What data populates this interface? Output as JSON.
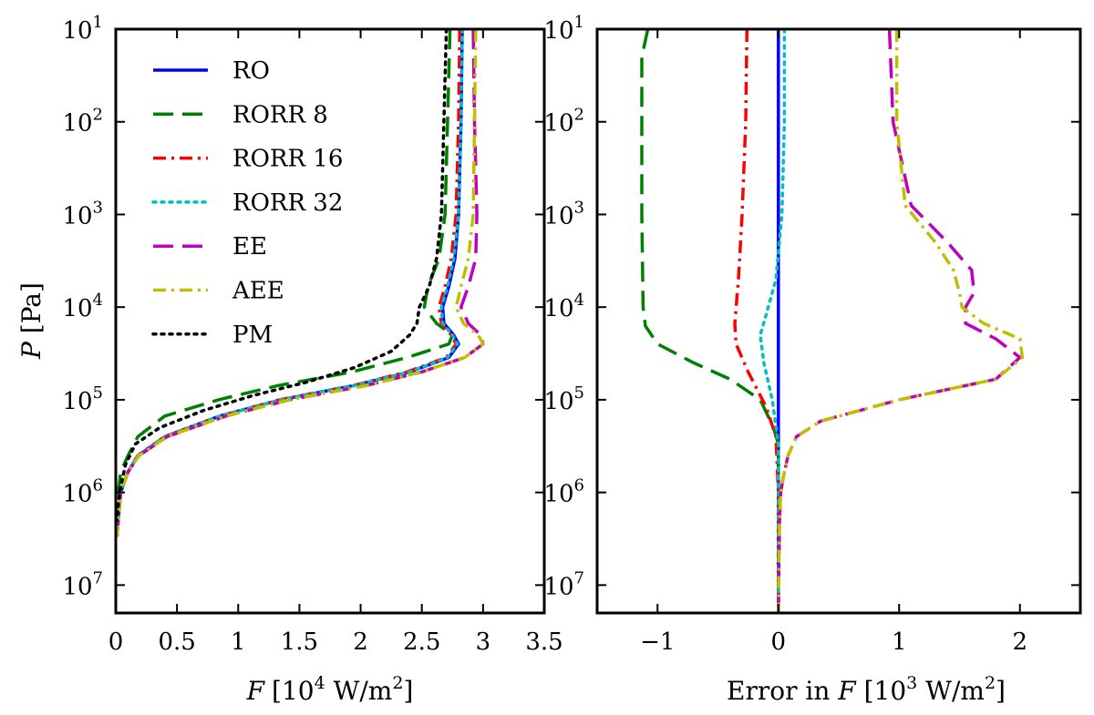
{
  "chart_data": [
    {
      "type": "line",
      "title": "",
      "xlabel_var": "F",
      "xlabel_unit": "[10",
      "xlabel_exp": "4",
      "xlabel_unit2": " W/m",
      "xlabel_unit2_exp": "2",
      "xlabel_close": "]",
      "ylabel_var": "P",
      "ylabel_unit": " [Pa]",
      "xlim": [
        0,
        3.5
      ],
      "ylim": [
        20000000,
        10
      ],
      "yscale": "log",
      "xticks": [
        0,
        0.5,
        1,
        1.5,
        2,
        2.5,
        3,
        3.5
      ],
      "xtick_labels": [
        "0",
        "0.5",
        "1",
        "1.5",
        "2",
        "2.5",
        "3",
        "3.5"
      ],
      "yticks": [
        10,
        100,
        1000,
        10000,
        100000,
        1000000,
        10000000
      ],
      "ytick_base": "10",
      "ytick_exps": [
        "1",
        "2",
        "3",
        "4",
        "5",
        "6",
        "7"
      ],
      "legend_position": "upper-left",
      "series": [
        {
          "name": "RO",
          "color": "#0000ff",
          "dash": "solid",
          "x": [
            2.83,
            2.82,
            2.8,
            2.77,
            2.72,
            2.67,
            2.68,
            2.76,
            2.8,
            2.72,
            2.4,
            1.95,
            1.35,
            0.85,
            0.4,
            0.18,
            0.1,
            0.04,
            0.02,
            0.01
          ],
          "y": [
            10,
            100,
            1000,
            3000,
            6000,
            10000,
            15000,
            20000,
            25000,
            35000,
            50000,
            70000,
            100000,
            150000,
            250000,
            400000,
            600000,
            1000000,
            2000000,
            3000000
          ]
        },
        {
          "name": "RORR 8",
          "color": "#008000",
          "dash": "longdash",
          "x": [
            2.73,
            2.71,
            2.69,
            2.64,
            2.55,
            2.52,
            2.62,
            2.75,
            2.72,
            2.38,
            1.93,
            1.33,
            0.84,
            0.4,
            0.18,
            0.1,
            0.04,
            0.02,
            0.01
          ],
          "y": [
            10,
            100,
            1000,
            3000,
            6000,
            10000,
            15000,
            20000,
            25000,
            35000,
            50000,
            70000,
            100000,
            150000,
            250000,
            400000,
            600000,
            1000000,
            2000000
          ]
        },
        {
          "name": "RORR 16",
          "color": "#ff0000",
          "dash": "dashdot",
          "x": [
            2.81,
            2.8,
            2.78,
            2.74,
            2.69,
            2.64,
            2.66,
            2.74,
            2.78,
            2.7,
            2.38,
            1.94,
            1.34,
            0.85,
            0.4,
            0.18,
            0.1,
            0.04,
            0.02,
            0.01
          ],
          "y": [
            10,
            100,
            1000,
            3000,
            6000,
            10000,
            15000,
            20000,
            25000,
            35000,
            50000,
            70000,
            100000,
            150000,
            250000,
            400000,
            600000,
            1000000,
            2000000,
            3000000
          ]
        },
        {
          "name": "RORR 32",
          "color": "#00bfbf",
          "dash": "dotted",
          "x": [
            2.83,
            2.82,
            2.8,
            2.76,
            2.71,
            2.66,
            2.67,
            2.75,
            2.79,
            2.71,
            2.4,
            1.95,
            1.35,
            0.85,
            0.4,
            0.18,
            0.1,
            0.04,
            0.02,
            0.01
          ],
          "y": [
            10,
            100,
            1000,
            3000,
            6000,
            10000,
            15000,
            20000,
            25000,
            35000,
            50000,
            70000,
            100000,
            150000,
            250000,
            400000,
            600000,
            1000000,
            2000000,
            3000000
          ]
        },
        {
          "name": "EE",
          "color": "#bf00bf",
          "dash": "longdash",
          "x": [
            2.92,
            2.93,
            2.95,
            2.94,
            2.88,
            2.82,
            2.88,
            2.98,
            3.0,
            2.85,
            2.5,
            2.05,
            1.42,
            0.9,
            0.42,
            0.19,
            0.1,
            0.04,
            0.02,
            0.01
          ],
          "y": [
            10,
            100,
            1000,
            3000,
            6000,
            10000,
            15000,
            20000,
            25000,
            35000,
            50000,
            70000,
            100000,
            150000,
            250000,
            400000,
            600000,
            1000000,
            2000000,
            3000000
          ]
        },
        {
          "name": "AEE",
          "color": "#bfbf00",
          "dash": "dashdot",
          "x": [
            2.94,
            2.93,
            2.92,
            2.88,
            2.82,
            2.78,
            2.84,
            2.96,
            3.0,
            2.85,
            2.5,
            2.05,
            1.42,
            0.9,
            0.42,
            0.19,
            0.1,
            0.04,
            0.02,
            0.01
          ],
          "y": [
            10,
            100,
            1000,
            3000,
            6000,
            10000,
            15000,
            20000,
            25000,
            35000,
            50000,
            70000,
            100000,
            150000,
            250000,
            400000,
            600000,
            1000000,
            2000000,
            3000000
          ]
        },
        {
          "name": "PM",
          "color": "#000000",
          "dash": "dotted",
          "x": [
            2.7,
            2.68,
            2.66,
            2.62,
            2.56,
            2.48,
            2.46,
            2.4,
            2.25,
            1.95,
            1.55,
            1.12,
            0.72,
            0.36,
            0.16,
            0.08,
            0.03,
            0.01
          ],
          "y": [
            10,
            100,
            1000,
            3000,
            6000,
            10000,
            15000,
            20000,
            30000,
            45000,
            65000,
            90000,
            130000,
            200000,
            300000,
            500000,
            1000000,
            2000000
          ]
        }
      ]
    },
    {
      "type": "line",
      "title": "",
      "xlabel_text": "Error in ",
      "xlabel_var": "F",
      "xlabel_unit": " [10",
      "xlabel_exp": "3",
      "xlabel_unit2": " W/m",
      "xlabel_unit2_exp": "2",
      "xlabel_close": "]",
      "xlim": [
        -1.5,
        2.5
      ],
      "ylim": [
        20000000,
        10
      ],
      "yscale": "log",
      "xticks": [
        -1,
        0,
        1,
        2
      ],
      "xtick_labels": [
        "−1",
        "0",
        "1",
        "2"
      ],
      "yticks": [
        10,
        100,
        1000,
        10000,
        100000,
        1000000,
        10000000
      ],
      "ytick_base": "10",
      "ytick_exps": [
        "1",
        "2",
        "3",
        "4",
        "5",
        "6",
        "7"
      ],
      "series": [
        {
          "name": "RO",
          "color": "#0000ff",
          "dash": "solid",
          "x": [
            0,
            0
          ],
          "y": [
            10,
            20000000
          ]
        },
        {
          "name": "RORR 8",
          "color": "#008000",
          "dash": "longdash",
          "x": [
            -1.08,
            -1.13,
            -1.13,
            -1.13,
            -1.12,
            -1.1,
            -1.0,
            -0.7,
            -0.4,
            -0.15,
            -0.04,
            0.0,
            0.0,
            0.0
          ],
          "y": [
            10,
            20,
            100,
            1000,
            10000,
            16000,
            25000,
            40000,
            60000,
            100000,
            200000,
            300000,
            1000000,
            20000000
          ]
        },
        {
          "name": "RORR 16",
          "color": "#ff0000",
          "dash": "dashdot",
          "x": [
            -0.26,
            -0.27,
            -0.3,
            -0.33,
            -0.36,
            -0.35,
            -0.25,
            -0.1,
            -0.02,
            0.0,
            0.0
          ],
          "y": [
            10,
            100,
            1000,
            5000,
            15000,
            25000,
            50000,
            120000,
            250000,
            1000000,
            20000000
          ]
        },
        {
          "name": "RORR 32",
          "color": "#00bfbf",
          "dash": "dotted",
          "x": [
            0.05,
            0.05,
            0.03,
            -0.02,
            -0.1,
            -0.15,
            -0.12,
            -0.05,
            0.0,
            0.0
          ],
          "y": [
            10,
            100,
            1000,
            5000,
            12000,
            20000,
            40000,
            100000,
            300000,
            20000000
          ]
        },
        {
          "name": "EE",
          "color": "#bf00bf",
          "dash": "longdash",
          "x": [
            0.92,
            0.95,
            1.1,
            1.4,
            1.6,
            1.62,
            1.55,
            1.55,
            1.8,
            2.0,
            1.8,
            1.0,
            0.35,
            0.15,
            0.08,
            0.04,
            0.02,
            0.01,
            0.0
          ],
          "y": [
            10,
            100,
            800,
            2000,
            4000,
            7000,
            10000,
            15000,
            22000,
            35000,
            60000,
            100000,
            170000,
            250000,
            400000,
            700000,
            1000000,
            2000000,
            20000000
          ]
        },
        {
          "name": "AEE",
          "color": "#bfbf00",
          "dash": "dashdot",
          "x": [
            0.98,
            0.98,
            1.05,
            1.3,
            1.45,
            1.5,
            1.52,
            1.7,
            2.0,
            2.02,
            1.8,
            1.0,
            0.35,
            0.15,
            0.08,
            0.04,
            0.02,
            0.01,
            0.0
          ],
          "y": [
            10,
            100,
            800,
            2000,
            4000,
            7000,
            10000,
            15000,
            22000,
            35000,
            60000,
            100000,
            170000,
            250000,
            400000,
            700000,
            1000000,
            2000000,
            20000000
          ]
        }
      ]
    }
  ]
}
